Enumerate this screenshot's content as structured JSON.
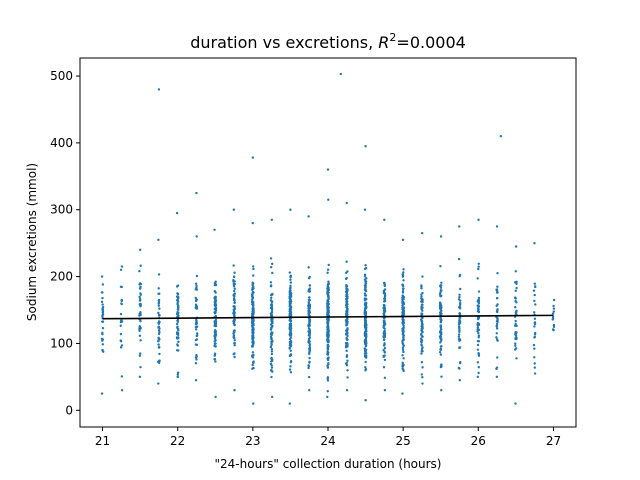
{
  "chart_data": {
    "type": "scatter",
    "title_prefix": "duration vs excretions, ",
    "title_r": "R",
    "title_sup": "2",
    "title_suffix": "=0.0004",
    "xlabel": "\"24-hours\" collection duration (hours)",
    "ylabel": "Sodium excretions (mmol)",
    "xlim": [
      20.7,
      27.3
    ],
    "ylim": [
      -25,
      527
    ],
    "xticks": [
      21,
      22,
      23,
      24,
      25,
      26,
      27
    ],
    "yticks": [
      0,
      100,
      200,
      300,
      400,
      500
    ],
    "grid": false,
    "colors": {
      "points": "#1f77b4",
      "fit_line": "#000000"
    },
    "fit_line": {
      "x": [
        21,
        27
      ],
      "y": [
        137,
        142
      ]
    },
    "outliers": {
      "x": [
        21.75,
        24.17,
        26.3,
        22.25,
        24.5,
        23.0,
        24.0
      ],
      "y": [
        480,
        503,
        410,
        325,
        395,
        378,
        360
      ]
    },
    "column_summary": {
      "x": [
        21.0,
        21.25,
        21.5,
        21.75,
        22.0,
        22.25,
        22.5,
        22.75,
        23.0,
        23.25,
        23.5,
        23.75,
        24.0,
        24.25,
        24.5,
        24.75,
        25.0,
        25.25,
        25.5,
        25.75,
        26.0,
        26.25,
        26.5,
        26.75,
        27.0
      ],
      "count": [
        30,
        25,
        45,
        40,
        60,
        45,
        85,
        70,
        135,
        90,
        150,
        105,
        195,
        120,
        155,
        90,
        120,
        70,
        80,
        45,
        55,
        35,
        40,
        25,
        12
      ],
      "y_min": [
        25,
        30,
        50,
        40,
        50,
        45,
        20,
        30,
        10,
        20,
        10,
        30,
        20,
        30,
        15,
        30,
        25,
        40,
        30,
        45,
        50,
        50,
        10,
        55,
        120
      ],
      "y_max": [
        200,
        215,
        240,
        255,
        295,
        260,
        270,
        300,
        280,
        285,
        300,
        290,
        315,
        310,
        300,
        285,
        255,
        265,
        260,
        275,
        285,
        275,
        245,
        250,
        165
      ]
    }
  }
}
